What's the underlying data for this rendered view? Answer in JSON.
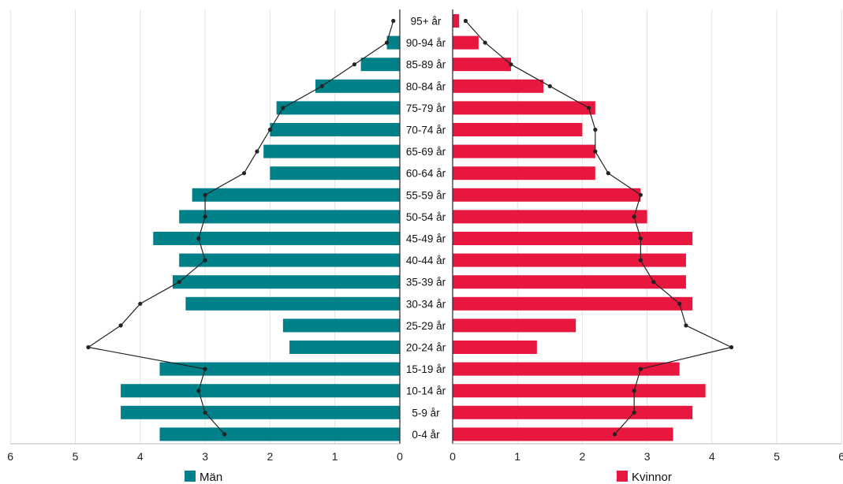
{
  "chart_data": {
    "type": "bar",
    "orientation": "horizontal",
    "layout": "population-pyramid",
    "categories": [
      "95+ år",
      "90-94 år",
      "85-89 år",
      "80-84 år",
      "75-79 år",
      "70-74 år",
      "65-69 år",
      "60-64 år",
      "55-59 år",
      "50-54 år",
      "45-49 år",
      "40-44 år",
      "35-39 år",
      "30-34 år",
      "25-29 år",
      "20-24 år",
      "15-19 år",
      "10-14 år",
      "5-9 år",
      "0-4 år"
    ],
    "series": [
      {
        "name": "Män",
        "side": "left",
        "color": "#00818a",
        "values": [
          0.0,
          0.2,
          0.6,
          1.3,
          1.9,
          2.0,
          2.1,
          2.0,
          3.2,
          3.4,
          3.8,
          3.4,
          3.5,
          3.3,
          1.8,
          1.7,
          3.7,
          4.3,
          4.3,
          3.7
        ],
        "comparison_line": [
          0.1,
          0.2,
          0.7,
          1.2,
          1.8,
          2.0,
          2.2,
          2.4,
          3.0,
          3.0,
          3.1,
          3.0,
          3.4,
          4.0,
          4.3,
          4.8,
          3.0,
          3.1,
          3.0,
          2.7
        ]
      },
      {
        "name": "Kvinnor",
        "side": "right",
        "color": "#e8173f",
        "values": [
          0.1,
          0.4,
          0.9,
          1.4,
          2.2,
          2.0,
          2.2,
          2.2,
          2.9,
          3.0,
          3.7,
          3.6,
          3.6,
          3.7,
          1.9,
          1.3,
          3.5,
          3.9,
          3.7,
          3.4
        ],
        "comparison_line": [
          0.2,
          0.5,
          0.9,
          1.5,
          2.1,
          2.2,
          2.2,
          2.4,
          2.9,
          2.8,
          2.9,
          2.9,
          3.1,
          3.5,
          3.6,
          4.3,
          2.9,
          2.8,
          2.8,
          2.5
        ]
      }
    ],
    "x_axis": {
      "left_ticks": [
        "6",
        "5",
        "4",
        "3",
        "2",
        "1",
        "0"
      ],
      "right_ticks": [
        "0",
        "1",
        "2",
        "3",
        "4",
        "5",
        "6"
      ],
      "range": [
        0,
        6
      ]
    },
    "grid": true,
    "line_color": "#222222",
    "legend_position": "bottom"
  }
}
